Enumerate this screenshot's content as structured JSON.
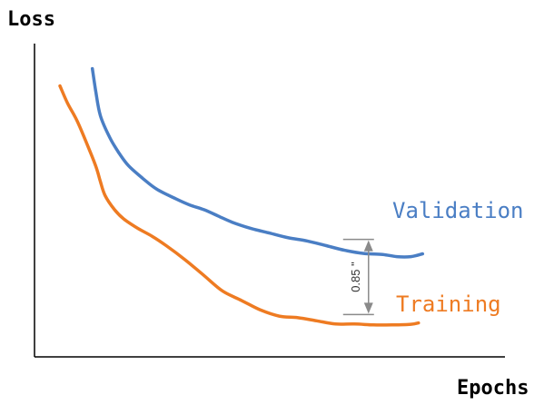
{
  "chart_data": {
    "type": "line",
    "ylabel": "Loss",
    "xlabel": "Epochs",
    "ticks": "none",
    "grid": false,
    "xlim": [
      0,
      100
    ],
    "ylim": [
      0,
      100
    ],
    "series": [
      {
        "name": "Validation",
        "color": "#4A7EC4",
        "x": [
          12.3,
          13,
          14,
          16,
          18,
          20,
          23,
          26,
          30,
          33,
          36,
          39,
          42,
          46,
          50,
          54,
          58,
          62,
          66,
          70,
          74,
          77,
          80,
          82.5
        ],
        "y": [
          92,
          85,
          77,
          70,
          65,
          61,
          57,
          53.5,
          50.5,
          48.5,
          47,
          45,
          43,
          41,
          39.5,
          38,
          37,
          35.5,
          34,
          33,
          32.7,
          32,
          32,
          32.9
        ]
      },
      {
        "name": "Training",
        "color": "#EE7B22",
        "x": [
          5.4,
          7,
          9,
          11,
          13,
          14,
          15,
          17,
          19,
          22,
          25,
          28,
          32,
          36,
          40,
          44,
          48,
          52,
          56,
          60,
          64,
          68,
          72,
          76,
          80,
          81.5,
          81.5,
          81.5
        ],
        "y": [
          86.5,
          81,
          75.5,
          68.5,
          61,
          56,
          51.5,
          47,
          44,
          41,
          38.5,
          35.5,
          31,
          26,
          21,
          18,
          15,
          13,
          12.5,
          11.5,
          10.5,
          10.5,
          10.2,
          10.2,
          10.4,
          10.8,
          10.8,
          10.8
        ]
      }
    ],
    "annotation": {
      "label": "0.85 \"",
      "x": 71,
      "y_low": 13.5,
      "y_high": 37.5,
      "color": "#8A8A8A"
    }
  }
}
